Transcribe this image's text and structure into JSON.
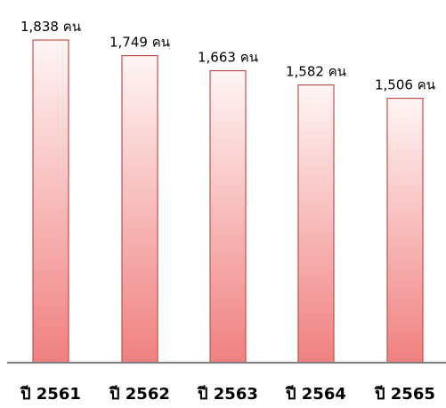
{
  "chart_data": {
    "type": "bar",
    "categories": [
      "ปี 2561",
      "ปี 2562",
      "ปี 2563",
      "ปี 2564",
      "ปี 2565"
    ],
    "values": [
      1838,
      1749,
      1663,
      1582,
      1506
    ],
    "data_labels": [
      "1,838 คน",
      "1,749 คน",
      "1,663 คน",
      "1,582 คน",
      "1,506 คน"
    ],
    "title": "",
    "xlabel": "",
    "ylabel": "",
    "ylim": [
      0,
      1838
    ],
    "grid": false,
    "legend": "none",
    "colors": {
      "bar_top": "#fff5f5",
      "bar_bottom": "#f08080",
      "bar_stroke": "#c0504d",
      "axis": "#808080"
    }
  }
}
